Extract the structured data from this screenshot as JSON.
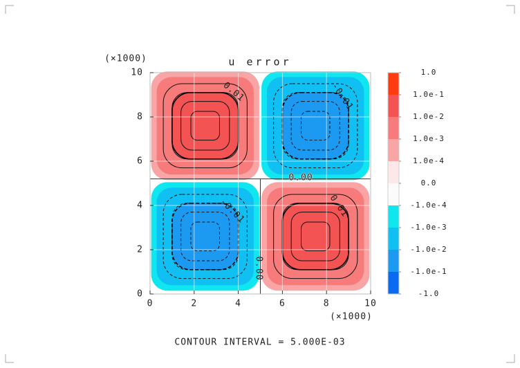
{
  "chart_data": {
    "type": "contour",
    "title": "u error",
    "x_multiplier": "(×1000)",
    "y_multiplier": "(×1000)",
    "xlim": [
      0,
      10
    ],
    "ylim": [
      0,
      10
    ],
    "xticks": [
      0,
      2,
      4,
      6,
      8,
      10
    ],
    "yticks": [
      0,
      2,
      4,
      6,
      8,
      10
    ],
    "grid": true,
    "cells": [
      {
        "x": 2.5,
        "y": 7.6,
        "value": 0.02
      },
      {
        "x": 7.5,
        "y": 7.6,
        "value": -0.02
      },
      {
        "x": 2.5,
        "y": 2.6,
        "value": -0.02
      },
      {
        "x": 7.5,
        "y": 2.6,
        "value": 0.02
      }
    ],
    "contour_labels": [
      "0.01",
      "-0.01",
      "0.00",
      "-0.01",
      "0.01",
      "0.00"
    ],
    "colorbar": {
      "ticks": [
        {
          "value": 1,
          "label": "1.0"
        },
        {
          "value": 0.1,
          "label": "1.0e-1"
        },
        {
          "value": 0.01,
          "label": "1.0e-2"
        },
        {
          "value": 0.001,
          "label": "1.0e-3"
        },
        {
          "value": 0.0001,
          "label": "1.0e-4"
        },
        {
          "value": 0,
          "label": "0.0"
        },
        {
          "value": -0.0001,
          "label": "-1.0e-4"
        },
        {
          "value": -0.001,
          "label": "-1.0e-3"
        },
        {
          "value": -0.01,
          "label": "-1.0e-2"
        },
        {
          "value": -0.1,
          "label": "-1.0e-1"
        },
        {
          "value": -1,
          "label": "-1.0"
        }
      ],
      "colors": [
        "#ff3b0f",
        "#f45353",
        "#f77b7b",
        "#f9a5a5",
        "#fce8e8",
        "#fbfbfb",
        "#10e6f0",
        "#10c0f2",
        "#1c9af2",
        "#0a6af0"
      ]
    },
    "footer": "CONTOUR INTERVAL = 5.000E-03"
  }
}
